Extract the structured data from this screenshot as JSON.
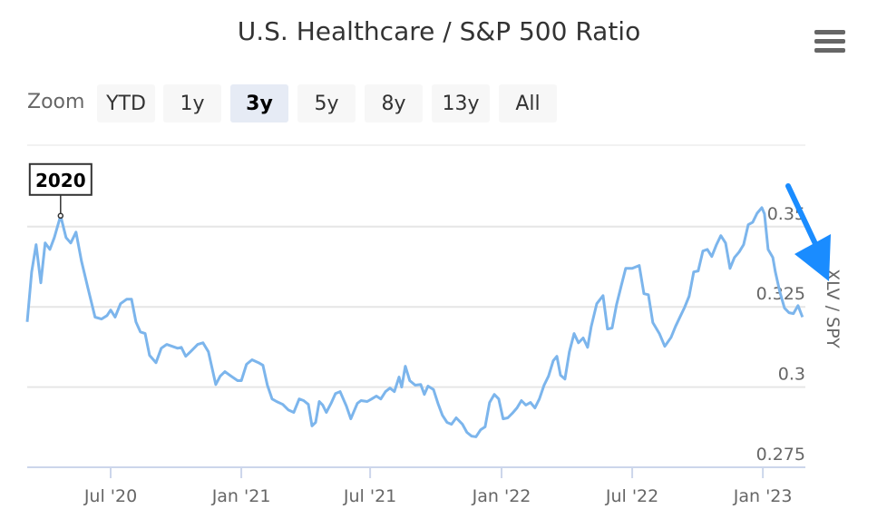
{
  "header": {
    "title": "U.S. Healthcare / S&P 500 Ratio"
  },
  "range_selector": {
    "label": "Zoom",
    "buttons": [
      {
        "label": "YTD"
      },
      {
        "label": "1y"
      },
      {
        "label": "3y",
        "selected": true
      },
      {
        "label": "5y"
      },
      {
        "label": "8y"
      },
      {
        "label": "13y"
      },
      {
        "label": "All"
      }
    ]
  },
  "chart_data": {
    "type": "line",
    "title": "U.S. Healthcare / S&P 500 Ratio",
    "ylabel": "XLV / SPY",
    "y_axis_side": "right",
    "ylim": [
      0.275,
      0.3754
    ],
    "xlim": [
      2020.176,
      2023.16
    ],
    "yticks": [
      {
        "v": 0.275,
        "label": "0.275"
      },
      {
        "v": 0.3,
        "label": "0.3"
      },
      {
        "v": 0.325,
        "label": "0.325"
      },
      {
        "v": 0.35,
        "label": "0.35"
      }
    ],
    "xticks": [
      {
        "t": 2020.496,
        "label": "Jul '20"
      },
      {
        "t": 2020.997,
        "label": "Jan '21"
      },
      {
        "t": 2021.491,
        "label": "Jul '21"
      },
      {
        "t": 2021.995,
        "label": "Jan '22"
      },
      {
        "t": 2022.496,
        "label": "Jul '22"
      },
      {
        "t": 2022.997,
        "label": "Jan '23"
      }
    ],
    "color": "#7cb5ec",
    "annotation": {
      "label": "2020",
      "t": 2020.304,
      "v": 0.3534
    },
    "series": [
      {
        "name": "XLV / SPY",
        "points": [
          [
            2020.176,
            0.3203
          ],
          [
            2020.193,
            0.3359
          ],
          [
            2020.21,
            0.3444
          ],
          [
            2020.228,
            0.3325
          ],
          [
            2020.245,
            0.3449
          ],
          [
            2020.263,
            0.3429
          ],
          [
            2020.28,
            0.3466
          ],
          [
            2020.304,
            0.3534
          ],
          [
            2020.325,
            0.3466
          ],
          [
            2020.343,
            0.3449
          ],
          [
            2020.363,
            0.3483
          ],
          [
            2020.384,
            0.3393
          ],
          [
            2020.409,
            0.3308
          ],
          [
            2020.436,
            0.3218
          ],
          [
            2020.461,
            0.3212
          ],
          [
            2020.482,
            0.3223
          ],
          [
            2020.496,
            0.324
          ],
          [
            2020.513,
            0.3218
          ],
          [
            2020.534,
            0.326
          ],
          [
            2020.558,
            0.3274
          ],
          [
            2020.576,
            0.3274
          ],
          [
            2020.593,
            0.3203
          ],
          [
            2020.61,
            0.3172
          ],
          [
            2020.628,
            0.3167
          ],
          [
            2020.645,
            0.3099
          ],
          [
            2020.67,
            0.3076
          ],
          [
            2020.69,
            0.3121
          ],
          [
            2020.711,
            0.3133
          ],
          [
            2020.732,
            0.3127
          ],
          [
            2020.753,
            0.3121
          ],
          [
            2020.767,
            0.3124
          ],
          [
            2020.784,
            0.3096
          ],
          [
            2020.802,
            0.311
          ],
          [
            2020.83,
            0.3133
          ],
          [
            2020.85,
            0.3138
          ],
          [
            2020.871,
            0.311
          ],
          [
            2020.899,
            0.3008
          ],
          [
            2020.916,
            0.3034
          ],
          [
            2020.934,
            0.3048
          ],
          [
            2020.958,
            0.3034
          ],
          [
            2020.983,
            0.302
          ],
          [
            2020.997,
            0.302
          ],
          [
            2021.017,
            0.3071
          ],
          [
            2021.038,
            0.3085
          ],
          [
            2021.063,
            0.3076
          ],
          [
            2021.08,
            0.3068
          ],
          [
            2021.097,
            0.3006
          ],
          [
            2021.115,
            0.2963
          ],
          [
            2021.132,
            0.2955
          ],
          [
            2021.156,
            0.2946
          ],
          [
            2021.177,
            0.2929
          ],
          [
            2021.198,
            0.2921
          ],
          [
            2021.219,
            0.2963
          ],
          [
            2021.236,
            0.2958
          ],
          [
            2021.254,
            0.2946
          ],
          [
            2021.268,
            0.2879
          ],
          [
            2021.282,
            0.289
          ],
          [
            2021.296,
            0.2955
          ],
          [
            2021.309,
            0.2944
          ],
          [
            2021.323,
            0.2921
          ],
          [
            2021.341,
            0.2949
          ],
          [
            2021.358,
            0.298
          ],
          [
            2021.376,
            0.2986
          ],
          [
            2021.4,
            0.2941
          ],
          [
            2021.417,
            0.2901
          ],
          [
            2021.442,
            0.2949
          ],
          [
            2021.456,
            0.2958
          ],
          [
            2021.48,
            0.2955
          ],
          [
            2021.497,
            0.2963
          ],
          [
            2021.515,
            0.2972
          ],
          [
            2021.532,
            0.2963
          ],
          [
            2021.55,
            0.2986
          ],
          [
            2021.567,
            0.2997
          ],
          [
            2021.584,
            0.2986
          ],
          [
            2021.602,
            0.3031
          ],
          [
            2021.612,
            0.3
          ],
          [
            2021.626,
            0.3065
          ],
          [
            2021.643,
            0.302
          ],
          [
            2021.664,
            0.3006
          ],
          [
            2021.685,
            0.3008
          ],
          [
            2021.699,
            0.2977
          ],
          [
            2021.713,
            0.3003
          ],
          [
            2021.734,
            0.2992
          ],
          [
            2021.751,
            0.2949
          ],
          [
            2021.768,
            0.2912
          ],
          [
            2021.786,
            0.289
          ],
          [
            2021.803,
            0.2884
          ],
          [
            2021.821,
            0.2904
          ],
          [
            2021.845,
            0.2884
          ],
          [
            2021.862,
            0.2859
          ],
          [
            2021.88,
            0.2847
          ],
          [
            2021.897,
            0.2845
          ],
          [
            2021.915,
            0.2867
          ],
          [
            2021.932,
            0.2876
          ],
          [
            2021.949,
            0.2952
          ],
          [
            2021.967,
            0.2977
          ],
          [
            2021.984,
            0.2963
          ],
          [
            2022.001,
            0.2901
          ],
          [
            2022.019,
            0.2904
          ],
          [
            2022.036,
            0.2918
          ],
          [
            2022.054,
            0.2935
          ],
          [
            2022.071,
            0.2958
          ],
          [
            2022.088,
            0.2944
          ],
          [
            2022.106,
            0.2952
          ],
          [
            2022.123,
            0.2935
          ],
          [
            2022.14,
            0.2963
          ],
          [
            2022.158,
            0.3006
          ],
          [
            2022.175,
            0.3034
          ],
          [
            2022.193,
            0.3082
          ],
          [
            2022.207,
            0.3096
          ],
          [
            2022.221,
            0.3037
          ],
          [
            2022.238,
            0.3025
          ],
          [
            2022.255,
            0.311
          ],
          [
            2022.273,
            0.3167
          ],
          [
            2022.29,
            0.3138
          ],
          [
            2022.308,
            0.3153
          ],
          [
            2022.325,
            0.3124
          ],
          [
            2022.339,
            0.3189
          ],
          [
            2022.36,
            0.326
          ],
          [
            2022.384,
            0.3285
          ],
          [
            2022.401,
            0.3181
          ],
          [
            2022.419,
            0.3184
          ],
          [
            2022.436,
            0.3257
          ],
          [
            2022.454,
            0.3316
          ],
          [
            2022.471,
            0.337
          ],
          [
            2022.496,
            0.337
          ],
          [
            2022.523,
            0.3379
          ],
          [
            2022.541,
            0.3291
          ],
          [
            2022.558,
            0.3288
          ],
          [
            2022.575,
            0.3201
          ],
          [
            2022.6,
            0.3167
          ],
          [
            2022.621,
            0.3127
          ],
          [
            2022.645,
            0.3155
          ],
          [
            2022.662,
            0.3189
          ],
          [
            2022.68,
            0.322
          ],
          [
            2022.697,
            0.3249
          ],
          [
            2022.714,
            0.3283
          ],
          [
            2022.732,
            0.3359
          ],
          [
            2022.749,
            0.3362
          ],
          [
            2022.767,
            0.3424
          ],
          [
            2022.784,
            0.3429
          ],
          [
            2022.801,
            0.3407
          ],
          [
            2022.819,
            0.3444
          ],
          [
            2022.836,
            0.3472
          ],
          [
            2022.854,
            0.3449
          ],
          [
            2022.871,
            0.337
          ],
          [
            2022.888,
            0.3404
          ],
          [
            2022.906,
            0.3421
          ],
          [
            2022.923,
            0.3444
          ],
          [
            2022.941,
            0.3506
          ],
          [
            2022.958,
            0.3514
          ],
          [
            2022.975,
            0.3542
          ],
          [
            2022.993,
            0.3559
          ],
          [
            2023.003,
            0.354
          ],
          [
            2023.017,
            0.3429
          ],
          [
            2023.035,
            0.3404
          ],
          [
            2023.045,
            0.3359
          ],
          [
            2023.062,
            0.3297
          ],
          [
            2023.08,
            0.3246
          ],
          [
            2023.097,
            0.3232
          ],
          [
            2023.114,
            0.3229
          ],
          [
            2023.132,
            0.3254
          ],
          [
            2023.149,
            0.3218
          ]
        ]
      }
    ]
  }
}
